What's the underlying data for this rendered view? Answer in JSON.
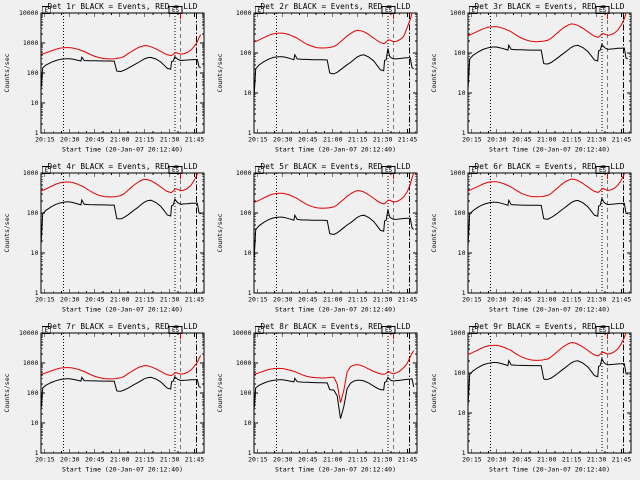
{
  "window": {
    "background": "#f0f0f0"
  },
  "colors": {
    "events": "#000000",
    "lld": "#e00000",
    "frame": "#000000",
    "text": "#000000"
  },
  "axes": {
    "ylabel": "Counts/sec",
    "xlabel": "Start Time (20-Jan-07 20:12:40)",
    "x_range_minutes": [
      0,
      98
    ],
    "x_major_ticks": [
      {
        "t": 2.33,
        "label": "20:15"
      },
      {
        "t": 17.33,
        "label": "20:30"
      },
      {
        "t": 32.33,
        "label": "20:45"
      },
      {
        "t": 47.33,
        "label": "21:00"
      },
      {
        "t": 62.33,
        "label": "21:15"
      },
      {
        "t": 77.33,
        "label": "21:30"
      },
      {
        "t": 92.33,
        "label": "21:45"
      }
    ],
    "x_minor_step_minutes": 5
  },
  "annotations": {
    "vlines": [
      {
        "style": "dotted",
        "t": 13.5
      },
      {
        "style": "dotted",
        "t": 80.5
      },
      {
        "style": "dashed",
        "t": 84
      },
      {
        "style": "dashdot",
        "t": 93.5
      }
    ],
    "flags": [
      {
        "label": "E",
        "t": 0.8,
        "w": 8
      },
      {
        "label": "ES",
        "t": 77.0,
        "w": 13
      }
    ],
    "red_top_tick_t": 84
  },
  "chart_data": {
    "type": "line",
    "note": "x = minutes after 20-Jan-07 20:12:40; y = counts/sec, log scale",
    "x": [
      0,
      1,
      3,
      6,
      9,
      12,
      15,
      17,
      19,
      22,
      24,
      24.5,
      26,
      29,
      32,
      35,
      38,
      41,
      44,
      45.5,
      46,
      48,
      50,
      52,
      54,
      56,
      58,
      60,
      62,
      64,
      66,
      69,
      72,
      74,
      76,
      78,
      78.5,
      79.5,
      80.5,
      81.5,
      82.5,
      84,
      86,
      88,
      90,
      92,
      94,
      95,
      96
    ],
    "series_names": [
      "Events",
      "LLD"
    ],
    "legend": "BLACK = Events, RED = LLD",
    "panels": [
      {
        "title": "Det 1r BLACK = Events, RED = LLD",
        "ylim": [
          1,
          10000
        ],
        "yticks": [
          "1",
          "10",
          "100",
          "1000",
          "10000"
        ],
        "events": [
          25,
          150,
          185,
          225,
          262,
          288,
          300,
          300,
          290,
          268,
          252,
          335,
          262,
          257,
          255,
          253,
          252,
          251,
          250,
          118,
          114,
          112,
          124,
          140,
          162,
          188,
          216,
          252,
          292,
          322,
          332,
          292,
          232,
          182,
          142,
          134,
          240,
          250,
          352,
          308,
          282,
          262,
          268,
          272,
          278,
          280,
          282,
          160,
          150
        ],
        "lld": [
          420,
          430,
          470,
          540,
          620,
          680,
          700,
          700,
          680,
          620,
          565,
          560,
          520,
          430,
          365,
          325,
          302,
          296,
          300,
          305,
          308,
          320,
          360,
          425,
          500,
          590,
          680,
          760,
          820,
          805,
          755,
          640,
          525,
          455,
          405,
          382,
          385,
          420,
          465,
          470,
          450,
          425,
          440,
          485,
          570,
          750,
          1100,
          1500,
          1900
        ]
      },
      {
        "title": "Det 2r BLACK = Events, RED = LLD",
        "ylim": [
          1,
          1000
        ],
        "yticks": [
          "1",
          "10",
          "100",
          "1000"
        ],
        "events": [
          7,
          40,
          50,
          61,
          71,
          78,
          81,
          81,
          78,
          72,
          68,
          90,
          71,
          69,
          69,
          68,
          68,
          68,
          67,
          32,
          31,
          30,
          33,
          38,
          44,
          51,
          58,
          68,
          79,
          87,
          90,
          79,
          63,
          49,
          38,
          36,
          65,
          68,
          130,
          83,
          76,
          71,
          72,
          73,
          75,
          76,
          76,
          43,
          40
        ],
        "lld": [
          189,
          194,
          212,
          243,
          279,
          306,
          315,
          315,
          306,
          279,
          254,
          252,
          234,
          194,
          164,
          146,
          136,
          133,
          135,
          137,
          139,
          144,
          162,
          191,
          225,
          266,
          306,
          342,
          369,
          362,
          340,
          288,
          236,
          205,
          182,
          172,
          174,
          190,
          210,
          212,
          203,
          192,
          198,
          220,
          260,
          420,
          700,
          1000,
          1200
        ]
      },
      {
        "title": "Det 3r BLACK = Events, RED = LLD",
        "ylim": [
          1,
          1000
        ],
        "yticks": [
          "1",
          "10",
          "100",
          "1000"
        ],
        "events": [
          12,
          71,
          87,
          106,
          123,
          135,
          141,
          141,
          136,
          126,
          118,
          157,
          123,
          121,
          120,
          119,
          118,
          118,
          118,
          55,
          54,
          53,
          58,
          66,
          76,
          88,
          102,
          118,
          137,
          151,
          156,
          137,
          109,
          86,
          67,
          63,
          113,
          118,
          165,
          145,
          133,
          123,
          126,
          128,
          131,
          132,
          133,
          75,
          71
        ],
        "lld": [
          273,
          280,
          306,
          351,
          403,
          442,
          455,
          455,
          442,
          403,
          367,
          364,
          338,
          280,
          237,
          211,
          196,
          192,
          195,
          198,
          200,
          208,
          234,
          276,
          325,
          384,
          442,
          494,
          533,
          523,
          491,
          416,
          341,
          296,
          263,
          248,
          250,
          273,
          302,
          306,
          293,
          276,
          286,
          315,
          371,
          488,
          715,
          1000,
          1200
        ]
      },
      {
        "title": "Det 4r BLACK = Events, RED = LLD",
        "ylim": [
          1,
          1000
        ],
        "yticks": [
          "1",
          "10",
          "100",
          "1000"
        ],
        "events": [
          16,
          95,
          117,
          142,
          165,
          181,
          189,
          189,
          183,
          169,
          159,
          211,
          165,
          162,
          161,
          159,
          159,
          158,
          158,
          74,
          72,
          71,
          78,
          88,
          102,
          118,
          136,
          159,
          184,
          203,
          209,
          184,
          146,
          115,
          89,
          84,
          151,
          158,
          222,
          194,
          178,
          165,
          169,
          171,
          175,
          176,
          178,
          101,
          95
        ],
        "lld": [
          357,
          366,
          400,
          459,
          527,
          578,
          595,
          595,
          578,
          527,
          480,
          476,
          442,
          366,
          310,
          276,
          257,
          252,
          255,
          259,
          262,
          272,
          306,
          361,
          425,
          502,
          578,
          646,
          697,
          684,
          642,
          544,
          446,
          387,
          344,
          325,
          327,
          357,
          395,
          400,
          383,
          361,
          374,
          412,
          485,
          638,
          935,
          1275,
          1600
        ]
      },
      {
        "title": "Det 5r BLACK = Events, RED = LLD",
        "ylim": [
          1,
          1000
        ],
        "yticks": [
          "1",
          "10",
          "100",
          "1000"
        ],
        "events": [
          6,
          38,
          48,
          59,
          69,
          76,
          79,
          79,
          76,
          70,
          66,
          88,
          69,
          67,
          67,
          66,
          66,
          66,
          65,
          31,
          30,
          29,
          32,
          37,
          43,
          50,
          57,
          66,
          77,
          85,
          88,
          77,
          61,
          48,
          37,
          35,
          63,
          66,
          120,
          81,
          74,
          69,
          70,
          71,
          73,
          74,
          74,
          42,
          39
        ],
        "lld": [
          185,
          191,
          208,
          240,
          275,
          301,
          310,
          310,
          301,
          275,
          250,
          248,
          230,
          191,
          161,
          144,
          134,
          131,
          133,
          135,
          137,
          142,
          159,
          188,
          221,
          262,
          301,
          337,
          363,
          356,
          335,
          283,
          232,
          202,
          179,
          169,
          170,
          186,
          206,
          209,
          200,
          188,
          195,
          215,
          253,
          333,
          520,
          750,
          1000
        ]
      },
      {
        "title": "Det 6r BLACK = Events, RED = LLD",
        "ylim": [
          1,
          1000
        ],
        "yticks": [
          "1",
          "10",
          "100",
          "1000"
        ],
        "events": [
          15,
          94,
          115,
          140,
          162,
          178,
          186,
          186,
          180,
          166,
          156,
          208,
          162,
          159,
          158,
          157,
          156,
          156,
          155,
          73,
          71,
          70,
          77,
          87,
          100,
          116,
          134,
          156,
          181,
          200,
          206,
          181,
          144,
          113,
          88,
          83,
          149,
          155,
          230,
          191,
          175,
          162,
          166,
          168,
          172,
          173,
          175,
          99,
          94
        ],
        "lld": [
          360,
          369,
          404,
          463,
          532,
          584,
          601,
          601,
          584,
          532,
          485,
          481,
          446,
          369,
          313,
          279,
          259,
          254,
          257,
          262,
          264,
          275,
          309,
          365,
          429,
          507,
          584,
          652,
          704,
          691,
          648,
          549,
          450,
          391,
          347,
          328,
          330,
          360,
          399,
          404,
          386,
          365,
          377,
          416,
          489,
          644,
          944,
          1290,
          1600
        ]
      },
      {
        "title": "Det 7r BLACK = Events, RED = LLD",
        "ylim": [
          1,
          10000
        ],
        "yticks": [
          "1",
          "10",
          "100",
          "1000",
          "10000"
        ],
        "events": [
          25,
          148,
          182,
          222,
          258,
          285,
          298,
          298,
          288,
          266,
          250,
          332,
          260,
          256,
          254,
          252,
          250,
          249,
          248,
          120,
          116,
          114,
          126,
          142,
          164,
          190,
          218,
          254,
          294,
          324,
          334,
          294,
          234,
          184,
          144,
          136,
          238,
          248,
          348,
          305,
          280,
          260,
          266,
          270,
          276,
          278,
          280,
          162,
          152
        ],
        "lld": [
          420,
          430,
          470,
          540,
          620,
          680,
          700,
          700,
          680,
          620,
          565,
          560,
          520,
          430,
          365,
          325,
          302,
          296,
          300,
          305,
          308,
          320,
          360,
          425,
          500,
          590,
          680,
          760,
          820,
          805,
          755,
          640,
          525,
          455,
          405,
          382,
          385,
          420,
          465,
          470,
          450,
          425,
          440,
          485,
          570,
          750,
          1050,
          1400,
          1800
        ]
      },
      {
        "title": "Det 8r BLACK = Events, RED = LLD",
        "ylim": [
          1,
          10000
        ],
        "yticks": [
          "1",
          "10",
          "100",
          "1000",
          "10000"
        ],
        "events": [
          25,
          148,
          180,
          215,
          248,
          268,
          278,
          276,
          266,
          248,
          234,
          308,
          238,
          231,
          227,
          224,
          221,
          219,
          217,
          130,
          128,
          125,
          80,
          14,
          35,
          140,
          210,
          250,
          268,
          266,
          253,
          214,
          169,
          144,
          130,
          127,
          228,
          238,
          330,
          290,
          262,
          252,
          262,
          268,
          275,
          283,
          290,
          300,
          160
        ],
        "lld": [
          420,
          432,
          470,
          540,
          610,
          650,
          662,
          655,
          625,
          565,
          525,
          515,
          475,
          405,
          355,
          332,
          322,
          317,
          320,
          328,
          332,
          338,
          200,
          48,
          120,
          500,
          750,
          850,
          885,
          845,
          760,
          625,
          520,
          470,
          432,
          420,
          422,
          450,
          525,
          505,
          462,
          440,
          480,
          560,
          700,
          950,
          1600,
          2100,
          2600
        ]
      },
      {
        "title": "Det 9r BLACK = Events, RED = LLD",
        "ylim": [
          1,
          1000
        ],
        "yticks": [
          "1",
          "10",
          "100",
          "1000"
        ],
        "events": [
          15,
          92,
          113,
          137,
          159,
          175,
          183,
          183,
          177,
          163,
          153,
          204,
          159,
          156,
          155,
          154,
          153,
          153,
          152,
          72,
          70,
          69,
          75,
          85,
          98,
          114,
          132,
          153,
          178,
          196,
          202,
          178,
          141,
          111,
          86,
          81,
          146,
          152,
          226,
          188,
          172,
          159,
          163,
          165,
          169,
          170,
          172,
          97,
          92
        ],
        "lld": [
          294,
          301,
          329,
          378,
          434,
          476,
          490,
          490,
          476,
          434,
          396,
          392,
          364,
          301,
          256,
          228,
          211,
          207,
          210,
          214,
          216,
          224,
          252,
          298,
          350,
          413,
          476,
          532,
          574,
          564,
          529,
          448,
          368,
          319,
          283,
          267,
          270,
          294,
          326,
          329,
          316,
          297,
          308,
          340,
          399,
          525,
          770,
          1050,
          1300
        ]
      }
    ]
  }
}
